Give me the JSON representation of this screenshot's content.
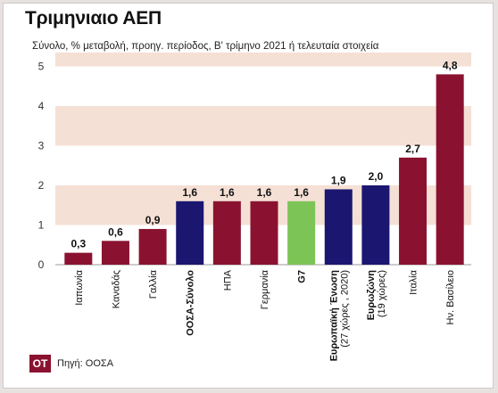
{
  "title": "Τριμηνιαιο ΑΕΠ",
  "subtitle": "Σύνολο, % μεταβολή, προηγ. περίοδος, Β' τρίμηνο 2021 ή τελευταία στοιχεία",
  "source": "Πηγή: ΟΟΣΑ",
  "logo": "OT",
  "colors": {
    "bar_default": "#8a1230",
    "bar_highlight": "#1b1670",
    "bar_g7": "#7dc456",
    "band": "#f5e0d5"
  },
  "chart_data": {
    "type": "bar",
    "title": "Τριμηνιαιο ΑΕΠ",
    "ylim": [
      0,
      5
    ],
    "yticks": [
      "0",
      "1",
      "2",
      "3",
      "4",
      "5"
    ],
    "grid": "alternating horizontal bands",
    "categories": [
      {
        "label": "Ιαπωνία",
        "bold": false,
        "color": "bar_default"
      },
      {
        "label": "Καναδάς",
        "bold": false,
        "color": "bar_default"
      },
      {
        "label": "Γαλλία",
        "bold": false,
        "color": "bar_default"
      },
      {
        "label": "ΟΟΣΑ-Σύνολο",
        "bold": true,
        "color": "bar_highlight"
      },
      {
        "label": "ΗΠΑ",
        "bold": false,
        "color": "bar_default"
      },
      {
        "label": "Γερμανία",
        "bold": false,
        "color": "bar_default"
      },
      {
        "label": "G7",
        "bold": true,
        "color": "bar_g7"
      },
      {
        "label": "Ευρωπαϊκή Ένωση",
        "sublabel": "(27 χώρες , 2020)",
        "bold": true,
        "color": "bar_highlight"
      },
      {
        "label": "Ευρωζώνη",
        "sublabel": "(19 χώρες)",
        "bold": true,
        "color": "bar_highlight"
      },
      {
        "label": "Ιταλία",
        "bold": false,
        "color": "bar_default"
      },
      {
        "label": "Ην. Βασίλειο",
        "bold": false,
        "color": "bar_default"
      }
    ],
    "values": [
      0.3,
      0.6,
      0.9,
      1.6,
      1.6,
      1.6,
      1.6,
      1.9,
      2.0,
      2.7,
      4.8
    ],
    "value_labels": [
      "0,3",
      "0,6",
      "0,9",
      "1,6",
      "1,6",
      "1,6",
      "1,6",
      "1,9",
      "2,0",
      "2,7",
      "4,8"
    ]
  }
}
